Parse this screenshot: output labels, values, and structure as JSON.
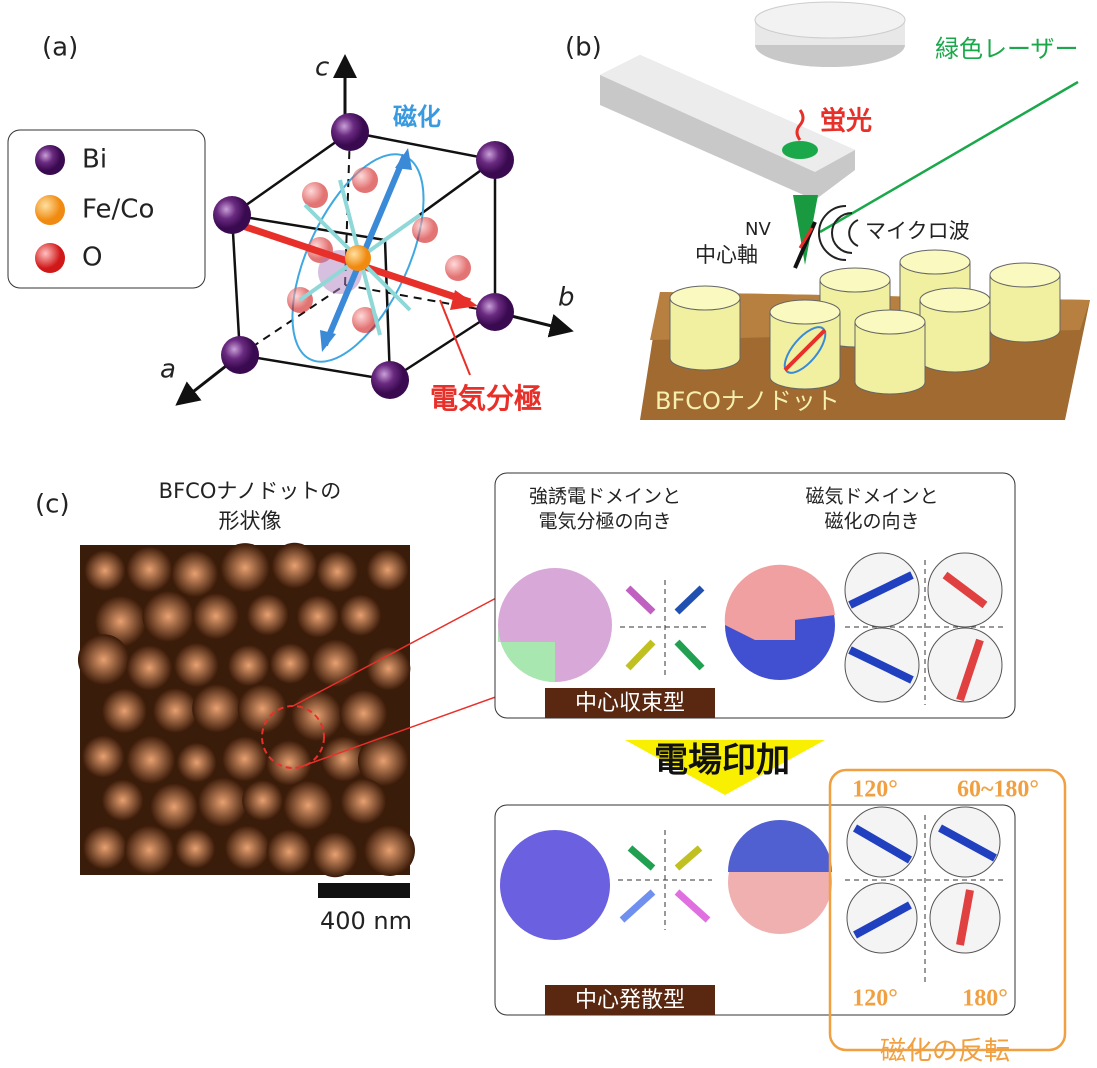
{
  "panel_a": {
    "label": "(a)",
    "legend": [
      "Bi",
      "Fe/Co",
      "O"
    ],
    "axes": {
      "c": "c",
      "b": "b",
      "a": "a"
    },
    "magnetization": "磁化",
    "polarization": "電気分極"
  },
  "panel_b": {
    "label": "(b)",
    "laser": "緑色レーザー",
    "fluorescence": "蛍光",
    "nv": "NV",
    "nv_axis": "中心軸",
    "microwave": "マイクロ波",
    "nanodot": "BFCOナノドット"
  },
  "panel_c": {
    "label": "(c)",
    "image_title": [
      "BFCOナノドットの",
      "形状像"
    ],
    "scale_bar": "400 nm",
    "ferro_title": [
      "強誘電ドメインと",
      "電気分極の向き"
    ],
    "magnetic_title": [
      "磁気ドメインと",
      "磁化の向き"
    ],
    "before": "中心収束型",
    "field": "電場印加",
    "after": "中心発散型",
    "angles": [
      "120°",
      "60~180°",
      "120°",
      "180°"
    ],
    "reversal": "磁化の反転"
  }
}
